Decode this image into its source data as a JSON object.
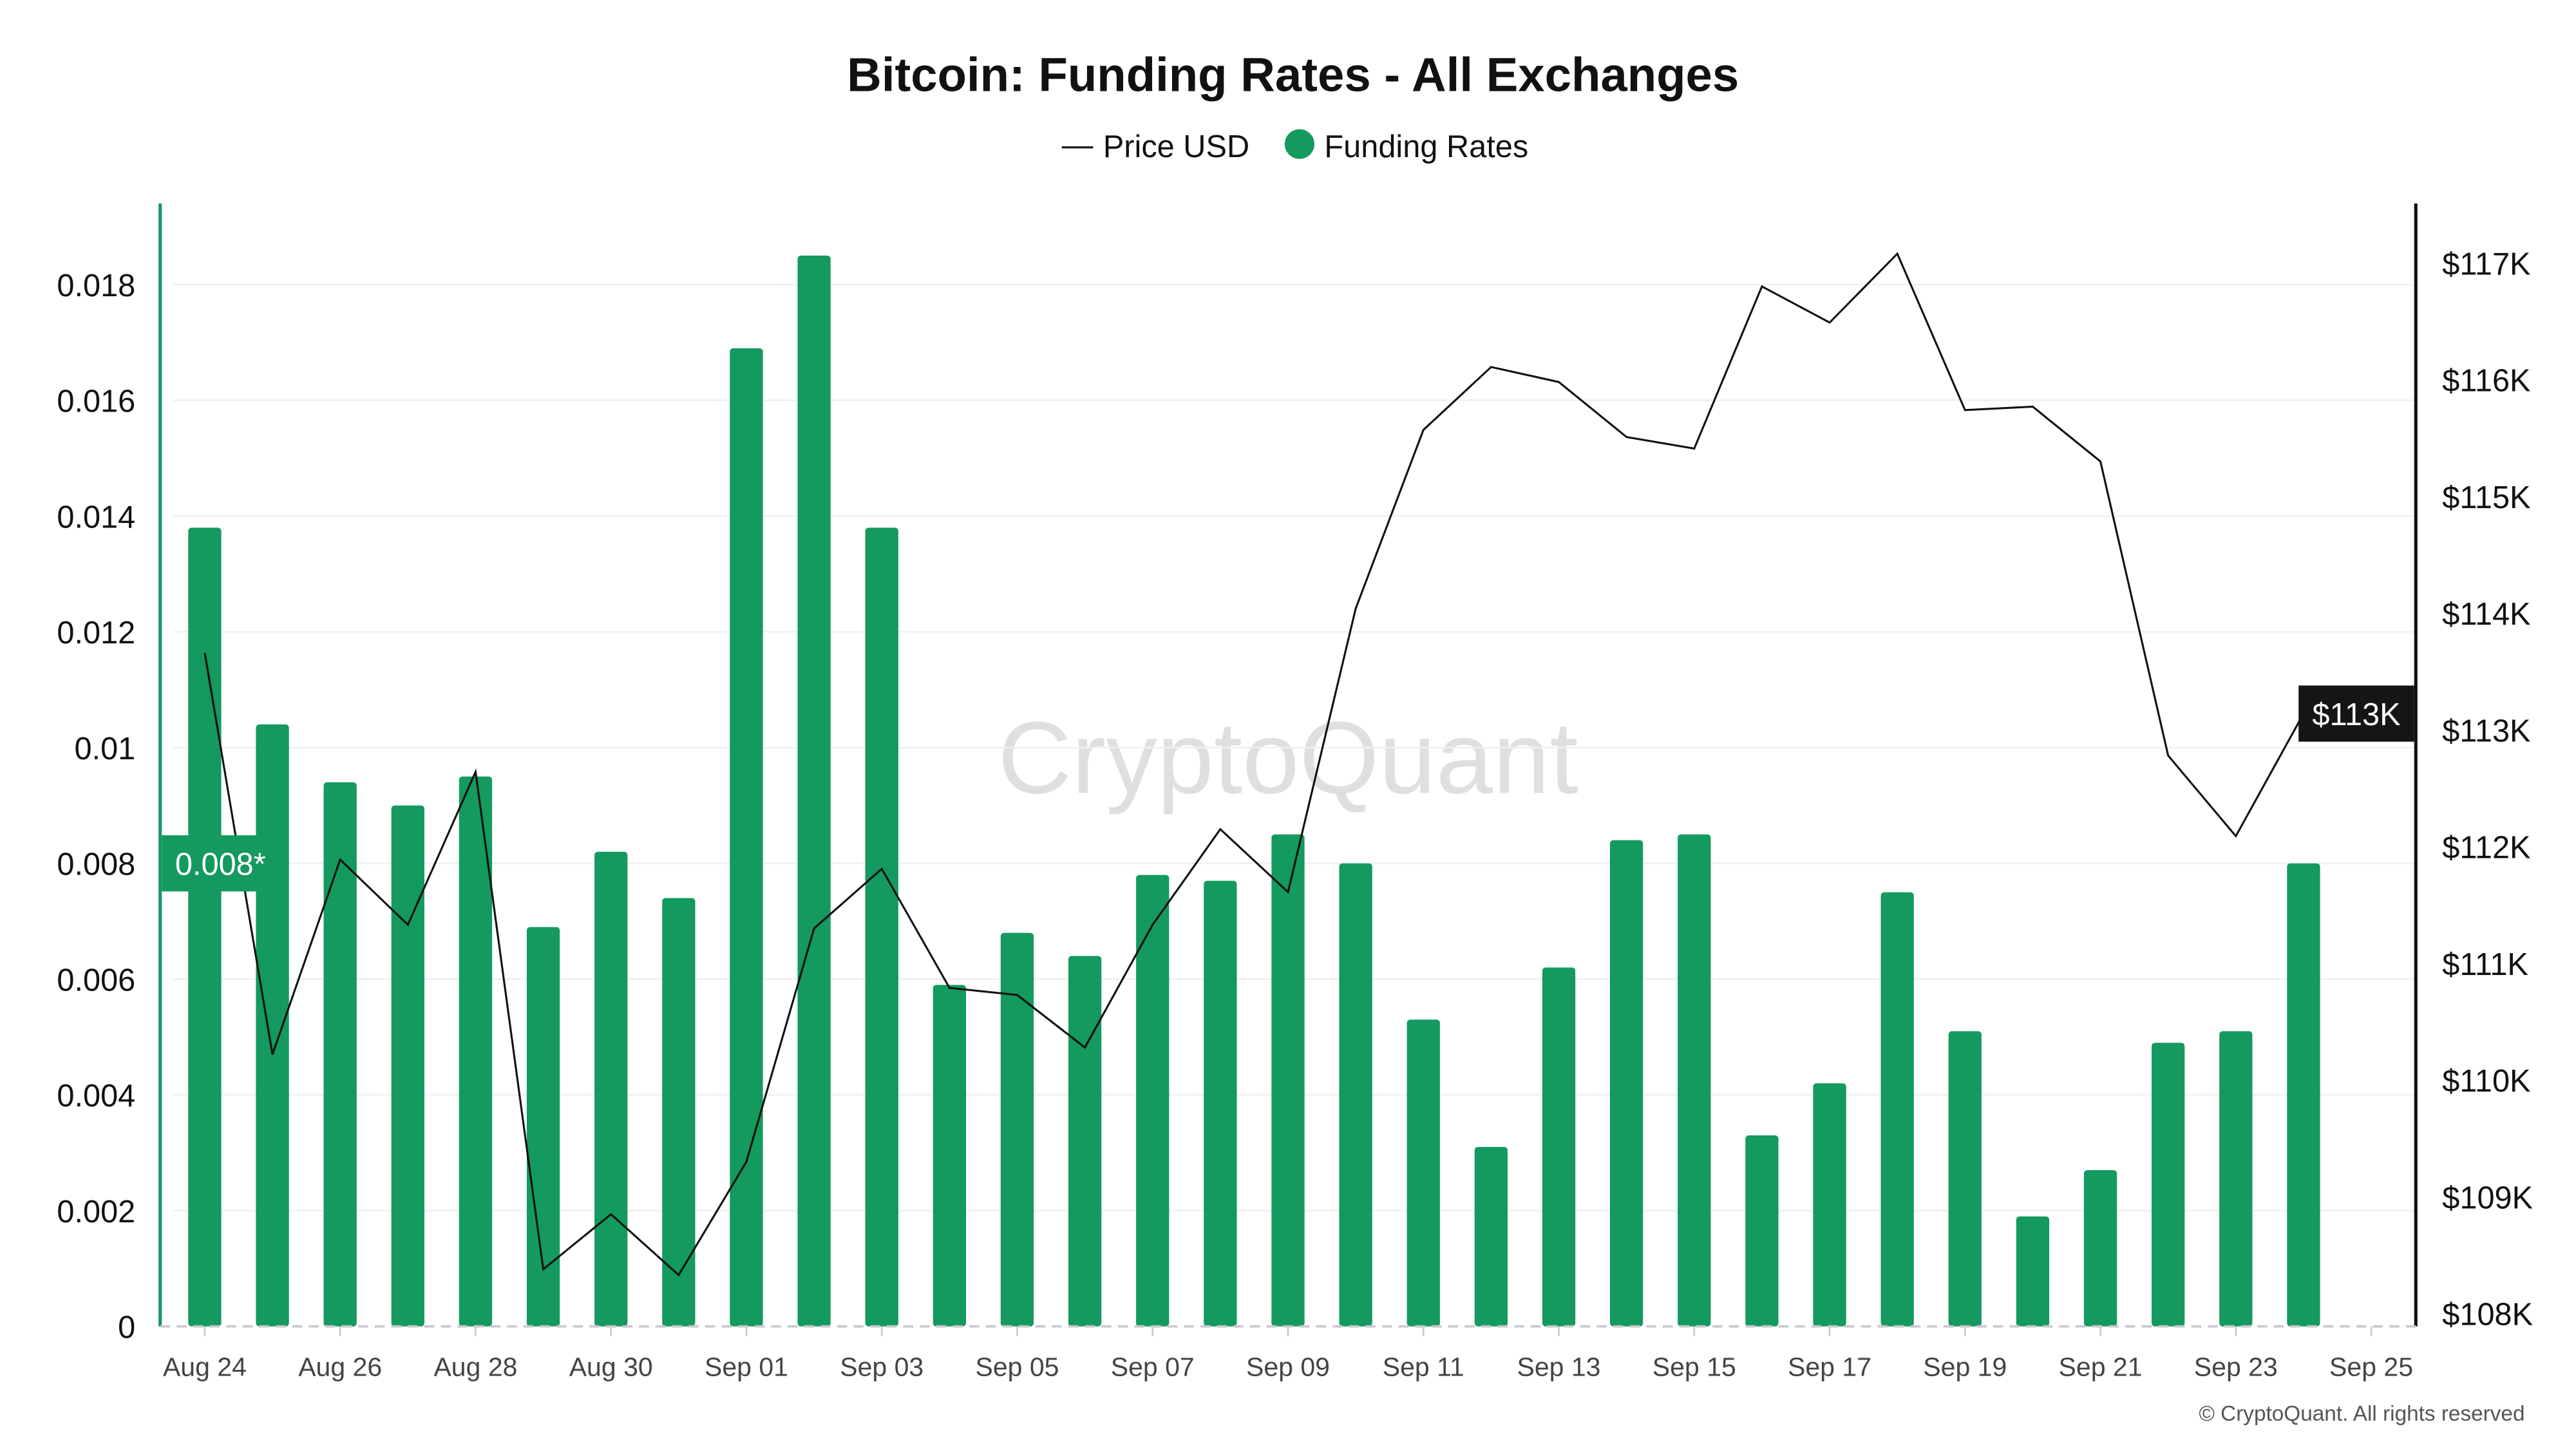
{
  "chart_data": {
    "type": "bar",
    "title": "Bitcoin: Funding Rates - All Exchanges",
    "legend": {
      "placement": "top-center",
      "entries": [
        "Price USD",
        "Funding Rates"
      ]
    },
    "watermark": "CryptoQuant",
    "copyright": "© CryptoQuant. All rights reserved",
    "grid": true,
    "x_tick_labels": [
      "Aug 24",
      "Aug 26",
      "Aug 28",
      "Aug 30",
      "Sep 01",
      "Sep 03",
      "Sep 05",
      "Sep 07",
      "Sep 09",
      "Sep 11",
      "Sep 13",
      "Sep 15",
      "Sep 17",
      "Sep 19",
      "Sep 21",
      "Sep 23",
      "Sep 25"
    ],
    "categories": [
      "Aug 24",
      "Aug 25",
      "Aug 26",
      "Aug 27",
      "Aug 28",
      "Aug 29",
      "Aug 30",
      "Aug 31",
      "Sep 01",
      "Sep 02",
      "Sep 03",
      "Sep 04",
      "Sep 05",
      "Sep 06",
      "Sep 07",
      "Sep 08",
      "Sep 09",
      "Sep 10",
      "Sep 11",
      "Sep 12",
      "Sep 13",
      "Sep 14",
      "Sep 15",
      "Sep 16",
      "Sep 17",
      "Sep 18",
      "Sep 19",
      "Sep 20",
      "Sep 21",
      "Sep 22",
      "Sep 23",
      "Sep 24"
    ],
    "left_axis": {
      "ylim": [
        0,
        0.0194
      ],
      "ticks": [
        "0",
        "0.002",
        "0.004",
        "0.006",
        "0.008",
        "0.01",
        "0.012",
        "0.014",
        "0.016",
        "0.018"
      ],
      "current_label": "0.008*",
      "current_value": 0.008,
      "color": "#14995f"
    },
    "right_axis": {
      "ylim": [
        107.89,
        117.51
      ],
      "unit": "K USD",
      "ticks": [
        "$108K",
        "$109K",
        "$110K",
        "$111K",
        "$112K",
        "$113K",
        "$114K",
        "$115K",
        "$116K",
        "$117K"
      ],
      "current_label": "$113K",
      "current_value": 113.14,
      "color": "#111111"
    },
    "series": [
      {
        "name": "Funding Rates",
        "axis": "left",
        "type": "bar",
        "color": "#14995f",
        "values": [
          0.0138,
          0.0104,
          0.0094,
          0.009,
          0.0095,
          0.0069,
          0.0082,
          0.0074,
          0.0169,
          0.0185,
          0.0138,
          0.0059,
          0.0068,
          0.0064,
          0.0078,
          0.0077,
          0.0085,
          0.008,
          0.0053,
          0.0031,
          0.0062,
          0.0084,
          0.0085,
          0.0033,
          0.0042,
          0.0075,
          0.0051,
          0.0019,
          0.0027,
          0.0049,
          0.0051,
          0.008
        ]
      },
      {
        "name": "Price USD",
        "axis": "right",
        "type": "line",
        "color": "#111111",
        "values": [
          113.66,
          110.22,
          111.89,
          111.33,
          112.64,
          108.38,
          108.85,
          108.33,
          109.3,
          111.3,
          111.81,
          110.79,
          110.73,
          110.28,
          111.33,
          112.15,
          111.61,
          114.04,
          115.57,
          116.11,
          115.98,
          115.51,
          115.41,
          116.8,
          116.49,
          117.08,
          115.74,
          115.77,
          115.3,
          112.78,
          112.09,
          113.14
        ]
      }
    ]
  }
}
